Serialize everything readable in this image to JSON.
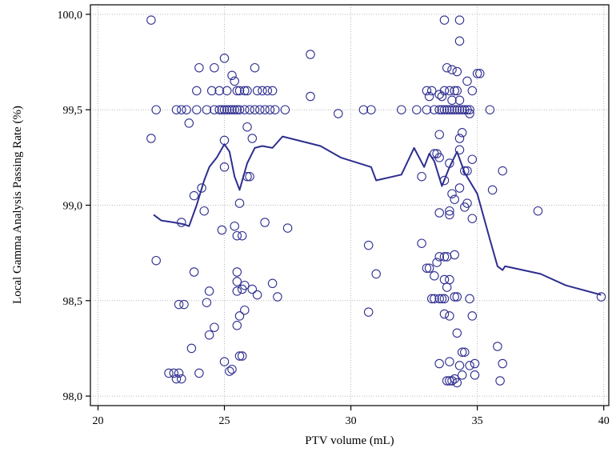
{
  "chart_data": {
    "type": "scatter",
    "title": "",
    "xlabel": "PTV volume (mL)",
    "ylabel": "Local Gamma Analysis Passing Rate (%)",
    "xlim": [
      19.7,
      40.2
    ],
    "ylim": [
      97.95,
      100.05
    ],
    "x_ticks": [
      20,
      25,
      30,
      35,
      40
    ],
    "x_tick_labels": [
      "20",
      "25",
      "30",
      "35",
      "40"
    ],
    "y_ticks": [
      98.0,
      98.5,
      99.0,
      99.5,
      100.0
    ],
    "y_tick_labels": [
      "98,0",
      "98,5",
      "99,0",
      "99,5",
      "100,0"
    ],
    "grid": true,
    "legend": "none",
    "colors": {
      "series": "#2e2e8f",
      "grid": "#b8b8b8"
    },
    "series": [
      {
        "kind": "scatter",
        "points": [
          [
            22.1,
            99.97
          ],
          [
            22.1,
            99.35
          ],
          [
            22.3,
            99.5
          ],
          [
            22.3,
            98.71
          ],
          [
            22.8,
            98.12
          ],
          [
            23.0,
            98.12
          ],
          [
            23.1,
            98.09
          ],
          [
            23.2,
            98.48
          ],
          [
            23.2,
            98.12
          ],
          [
            23.4,
            98.48
          ],
          [
            23.3,
            98.09
          ],
          [
            23.1,
            99.5
          ],
          [
            23.3,
            99.5
          ],
          [
            23.3,
            98.91
          ],
          [
            23.6,
            99.43
          ],
          [
            23.5,
            99.5
          ],
          [
            23.7,
            98.25
          ],
          [
            23.8,
            99.05
          ],
          [
            23.8,
            98.65
          ],
          [
            23.9,
            99.5
          ],
          [
            23.9,
            99.6
          ],
          [
            24.0,
            99.72
          ],
          [
            24.0,
            98.12
          ],
          [
            24.1,
            99.09
          ],
          [
            24.2,
            98.97
          ],
          [
            24.3,
            99.5
          ],
          [
            24.3,
            98.49
          ],
          [
            24.4,
            98.55
          ],
          [
            24.4,
            98.32
          ],
          [
            24.5,
            99.6
          ],
          [
            24.6,
            99.72
          ],
          [
            24.6,
            99.5
          ],
          [
            24.6,
            98.36
          ],
          [
            24.8,
            99.5
          ],
          [
            24.8,
            99.6
          ],
          [
            24.9,
            98.87
          ],
          [
            25.0,
            99.77
          ],
          [
            25.0,
            99.34
          ],
          [
            25.0,
            99.2
          ],
          [
            25.0,
            98.18
          ],
          [
            24.9,
            99.5
          ],
          [
            25.0,
            99.5
          ],
          [
            25.1,
            99.5
          ],
          [
            25.1,
            99.6
          ],
          [
            25.2,
            98.13
          ],
          [
            25.2,
            99.5
          ],
          [
            25.3,
            99.68
          ],
          [
            25.3,
            99.5
          ],
          [
            25.3,
            98.14
          ],
          [
            25.4,
            99.65
          ],
          [
            25.4,
            99.5
          ],
          [
            25.4,
            98.89
          ],
          [
            25.5,
            99.6
          ],
          [
            25.5,
            99.5
          ],
          [
            25.5,
            98.6
          ],
          [
            25.5,
            98.55
          ],
          [
            25.5,
            98.84
          ],
          [
            25.5,
            98.65
          ],
          [
            25.5,
            98.37
          ],
          [
            25.6,
            99.6
          ],
          [
            25.6,
            99.5
          ],
          [
            25.6,
            99.01
          ],
          [
            25.6,
            98.21
          ],
          [
            25.6,
            98.42
          ],
          [
            25.7,
            98.21
          ],
          [
            25.7,
            98.56
          ],
          [
            25.7,
            98.84
          ],
          [
            25.8,
            98.58
          ],
          [
            25.8,
            98.45
          ],
          [
            25.8,
            99.6
          ],
          [
            25.8,
            99.5
          ],
          [
            25.9,
            99.6
          ],
          [
            25.9,
            99.41
          ],
          [
            25.9,
            99.15
          ],
          [
            26.0,
            99.15
          ],
          [
            26.0,
            99.5
          ],
          [
            26.1,
            99.35
          ],
          [
            26.1,
            98.56
          ],
          [
            26.2,
            99.72
          ],
          [
            26.2,
            99.5
          ],
          [
            26.3,
            99.6
          ],
          [
            26.3,
            98.53
          ],
          [
            26.4,
            99.5
          ],
          [
            26.5,
            99.6
          ],
          [
            26.6,
            99.5
          ],
          [
            26.6,
            98.91
          ],
          [
            26.7,
            99.6
          ],
          [
            26.8,
            99.5
          ],
          [
            26.9,
            99.6
          ],
          [
            26.9,
            98.59
          ],
          [
            27.0,
            99.5
          ],
          [
            27.1,
            98.52
          ],
          [
            27.4,
            99.5
          ],
          [
            27.5,
            98.88
          ],
          [
            28.4,
            99.79
          ],
          [
            28.4,
            99.57
          ],
          [
            29.5,
            99.48
          ],
          [
            30.5,
            99.5
          ],
          [
            30.7,
            98.79
          ],
          [
            30.7,
            98.44
          ],
          [
            30.8,
            99.5
          ],
          [
            31.0,
            98.64
          ],
          [
            32.0,
            99.5
          ],
          [
            32.6,
            99.5
          ],
          [
            32.8,
            98.8
          ],
          [
            32.8,
            99.15
          ],
          [
            33.0,
            99.6
          ],
          [
            33.0,
            99.5
          ],
          [
            33.0,
            98.67
          ],
          [
            33.1,
            99.57
          ],
          [
            33.1,
            98.67
          ],
          [
            33.2,
            99.6
          ],
          [
            33.2,
            98.51
          ],
          [
            33.3,
            99.5
          ],
          [
            33.3,
            99.27
          ],
          [
            33.3,
            98.63
          ],
          [
            33.3,
            98.51
          ],
          [
            33.4,
            99.27
          ],
          [
            33.4,
            98.7
          ],
          [
            33.5,
            99.58
          ],
          [
            33.5,
            99.5
          ],
          [
            33.5,
            99.37
          ],
          [
            33.5,
            99.25
          ],
          [
            33.5,
            98.96
          ],
          [
            33.5,
            98.73
          ],
          [
            33.5,
            98.51
          ],
          [
            33.5,
            98.17
          ],
          [
            33.6,
            99.57
          ],
          [
            33.6,
            99.5
          ],
          [
            33.6,
            98.51
          ],
          [
            33.7,
            99.97
          ],
          [
            33.7,
            99.6
          ],
          [
            33.7,
            99.5
          ],
          [
            33.7,
            99.13
          ],
          [
            33.7,
            98.73
          ],
          [
            33.7,
            98.51
          ],
          [
            33.7,
            98.43
          ],
          [
            33.7,
            98.61
          ],
          [
            33.8,
            99.72
          ],
          [
            33.8,
            99.5
          ],
          [
            33.8,
            98.73
          ],
          [
            33.8,
            98.57
          ],
          [
            33.8,
            98.08
          ],
          [
            33.9,
            99.6
          ],
          [
            33.9,
            99.5
          ],
          [
            33.9,
            99.22
          ],
          [
            33.9,
            98.97
          ],
          [
            33.9,
            98.95
          ],
          [
            33.9,
            98.61
          ],
          [
            33.9,
            98.42
          ],
          [
            33.9,
            98.18
          ],
          [
            33.9,
            98.08
          ],
          [
            34.0,
            99.71
          ],
          [
            34.0,
            99.55
          ],
          [
            34.0,
            99.5
          ],
          [
            34.0,
            99.06
          ],
          [
            34.0,
            98.08
          ],
          [
            34.1,
            99.5
          ],
          [
            34.1,
            99.6
          ],
          [
            34.1,
            99.03
          ],
          [
            34.1,
            98.74
          ],
          [
            34.1,
            98.52
          ],
          [
            34.1,
            98.09
          ],
          [
            34.2,
            99.7
          ],
          [
            34.2,
            99.6
          ],
          [
            34.2,
            99.5
          ],
          [
            34.2,
            98.52
          ],
          [
            34.2,
            98.33
          ],
          [
            34.2,
            98.07
          ],
          [
            34.3,
            99.97
          ],
          [
            34.3,
            99.86
          ],
          [
            34.3,
            99.55
          ],
          [
            34.3,
            99.5
          ],
          [
            34.3,
            99.35
          ],
          [
            34.3,
            99.29
          ],
          [
            34.3,
            99.09
          ],
          [
            34.3,
            98.16
          ],
          [
            34.4,
            99.5
          ],
          [
            34.4,
            99.38
          ],
          [
            34.4,
            98.11
          ],
          [
            34.4,
            98.23
          ],
          [
            34.5,
            99.5
          ],
          [
            34.5,
            99.18
          ],
          [
            34.5,
            98.99
          ],
          [
            34.5,
            98.23
          ],
          [
            34.6,
            99.65
          ],
          [
            34.6,
            99.5
          ],
          [
            34.6,
            99.18
          ],
          [
            34.6,
            99.01
          ],
          [
            34.7,
            99.5
          ],
          [
            34.7,
            99.48
          ],
          [
            34.7,
            98.51
          ],
          [
            34.7,
            98.16
          ],
          [
            34.8,
            99.6
          ],
          [
            34.8,
            99.24
          ],
          [
            34.8,
            98.93
          ],
          [
            34.8,
            98.42
          ],
          [
            34.9,
            98.17
          ],
          [
            34.9,
            98.11
          ],
          [
            35.0,
            99.69
          ],
          [
            35.1,
            99.69
          ],
          [
            35.5,
            99.5
          ],
          [
            35.6,
            99.08
          ],
          [
            35.8,
            98.26
          ],
          [
            35.9,
            98.08
          ],
          [
            36.0,
            99.18
          ],
          [
            36.0,
            98.17
          ],
          [
            37.4,
            98.97
          ],
          [
            39.9,
            98.52
          ]
        ]
      },
      {
        "kind": "line",
        "points": [
          [
            22.2,
            98.95
          ],
          [
            22.5,
            98.92
          ],
          [
            23.0,
            98.91
          ],
          [
            23.4,
            98.9
          ],
          [
            23.6,
            98.89
          ],
          [
            23.9,
            99.0
          ],
          [
            24.2,
            99.13
          ],
          [
            24.4,
            99.2
          ],
          [
            24.7,
            99.25
          ],
          [
            25.0,
            99.32
          ],
          [
            25.2,
            99.28
          ],
          [
            25.4,
            99.15
          ],
          [
            25.6,
            99.08
          ],
          [
            25.9,
            99.22
          ],
          [
            26.2,
            99.3
          ],
          [
            26.5,
            99.31
          ],
          [
            26.9,
            99.3
          ],
          [
            27.3,
            99.36
          ],
          [
            27.6,
            99.35
          ],
          [
            28.8,
            99.31
          ],
          [
            29.6,
            99.25
          ],
          [
            30.8,
            99.2
          ],
          [
            31.0,
            99.13
          ],
          [
            32.0,
            99.16
          ],
          [
            32.5,
            99.3
          ],
          [
            32.9,
            99.2
          ],
          [
            33.1,
            99.27
          ],
          [
            33.3,
            99.23
          ],
          [
            33.6,
            99.1
          ],
          [
            33.9,
            99.2
          ],
          [
            34.2,
            99.28
          ],
          [
            34.5,
            99.17
          ],
          [
            35.0,
            99.06
          ],
          [
            35.5,
            98.82
          ],
          [
            35.8,
            98.68
          ],
          [
            36.0,
            98.66
          ],
          [
            36.1,
            98.68
          ],
          [
            37.5,
            98.64
          ],
          [
            38.5,
            98.58
          ],
          [
            39.9,
            98.53
          ]
        ]
      }
    ]
  }
}
